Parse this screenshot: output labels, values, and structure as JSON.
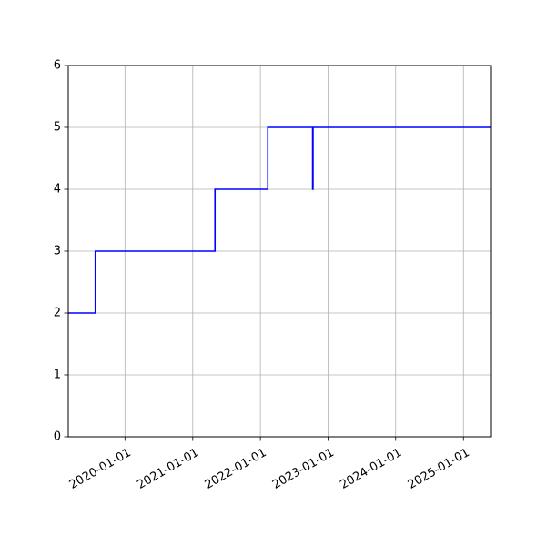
{
  "chart_data": {
    "type": "line",
    "line_style": "step",
    "title": "",
    "xlabel": "",
    "ylabel": "",
    "grid": true,
    "x_axis_type": "date",
    "xlim": [
      "2019-03-01",
      "2025-06-01"
    ],
    "ylim": [
      0,
      6
    ],
    "x_ticks": [
      "2020-01-01",
      "2021-01-01",
      "2022-01-01",
      "2023-01-01",
      "2024-01-01",
      "2025-01-01"
    ],
    "y_ticks": [
      0,
      1,
      2,
      3,
      4,
      5,
      6
    ],
    "series": [
      {
        "color": "#0000ff",
        "x": [
          "2019-03-01",
          "2019-07-25",
          "2021-05-01",
          "2022-02-10",
          "2022-10-10",
          "2022-10-12",
          "2025-06-01"
        ],
        "y": [
          2,
          3,
          4,
          5,
          4,
          5,
          5
        ]
      }
    ]
  }
}
